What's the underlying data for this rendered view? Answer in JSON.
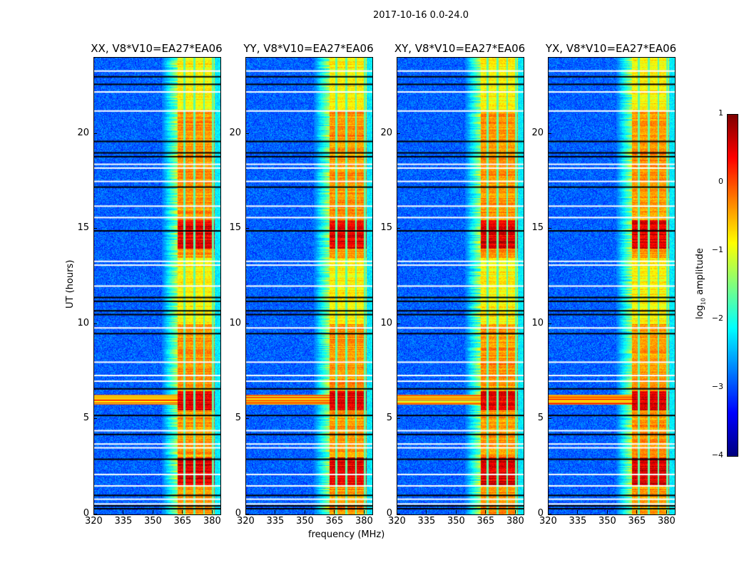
{
  "chart_data": {
    "type": "heatmap",
    "title": "2017-10-16 0.0-24.0",
    "xlabel": "frequency (MHz)",
    "ylabel": "UT (hours)",
    "xlim": [
      320,
      384
    ],
    "ylim": [
      0,
      24
    ],
    "xticks": [
      320,
      335,
      350,
      365,
      380
    ],
    "yticks": [
      0,
      5,
      10,
      15,
      20
    ],
    "panels": [
      {
        "title": "XX, V8*V10=EA27*EA06",
        "seed": 1
      },
      {
        "title": "YY, V8*V10=EA27*EA06",
        "seed": 2
      },
      {
        "title": "XY, V8*V10=EA27*EA06",
        "seed": 3
      },
      {
        "title": "YX, V8*V10=EA27*EA06",
        "seed": 4
      }
    ],
    "colorbar": {
      "label_prefix": "log",
      "label_sub": "10",
      "label_suffix": " amplitude",
      "range": [
        -4,
        1
      ],
      "ticks": [
        1,
        0,
        -1,
        -2,
        -3,
        -4
      ],
      "tick_labels": [
        "1",
        "0",
        "−1",
        "−2",
        "−3",
        "−4"
      ],
      "colormap": "jet"
    },
    "background_level": -2.9,
    "signal_band_mhz": [
      362,
      381
    ],
    "signal_edge_mhz": [
      354,
      362
    ],
    "channel_gaps_mhz": [
      365.5,
      370.5,
      375.5,
      380
    ],
    "strong_periods_hours": [
      [
        1.5,
        3.0
      ],
      [
        5.5,
        6.5
      ],
      [
        14.0,
        15.5
      ]
    ],
    "rfi_hours": [
      5.8,
      6.3
    ],
    "flagged_white_hours": [
      0.55,
      0.8,
      1.5,
      2.1,
      3.5,
      3.7,
      4.4,
      7.0,
      7.3,
      8.0,
      9.8,
      12.0,
      13.1,
      13.3,
      15.6,
      16.2,
      17.5,
      18.2,
      18.4,
      21.2,
      22.2,
      23.3
    ],
    "flagged_black_hours": [
      0.3,
      0.45,
      1.0,
      2.9,
      4.2,
      5.2,
      6.6,
      9.5,
      10.5,
      10.7,
      11.2,
      11.4,
      14.9,
      17.2,
      18.8,
      19.0,
      19.6,
      22.6,
      23.0
    ]
  }
}
